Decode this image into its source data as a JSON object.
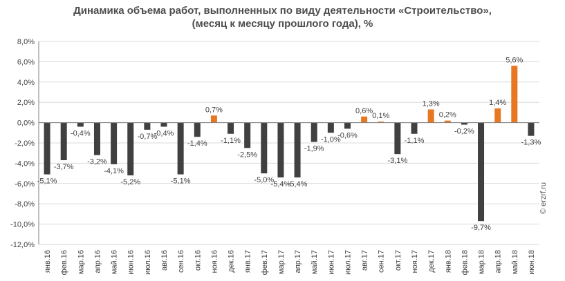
{
  "title_line1": "Динамика объема работ, выполненных по виду деятельности «Строительство»,",
  "title_line2": "(месяц к месяцу прошлого года), %",
  "watermark": "© erzrf.ru",
  "colors": {
    "negative": "#404040",
    "positive": "#e87722",
    "grid": "#d9d9d9",
    "axis": "#7f7f7f",
    "text": "#404040"
  },
  "chart_data": {
    "type": "bar",
    "title": "Динамика объема работ, выполненных по виду деятельности «Строительство», (месяц к месяцу прошлого года), %",
    "categories": [
      "янв.16",
      "фев.16",
      "мар.16",
      "апр.16",
      "май.16",
      "июн.16",
      "июл.16",
      "авг.16",
      "сен.16",
      "окт.16",
      "ноя.16",
      "дек.16",
      "янв.17",
      "фев.17",
      "мар.17",
      "апр.17",
      "май.17",
      "июн.17",
      "июл.17",
      "авг.17",
      "сен.17",
      "окт.17",
      "ноя.17",
      "дек.17",
      "янв.18",
      "фев.18",
      "мар.18",
      "апр.18",
      "май.18",
      "июн.18"
    ],
    "values": [
      -5.1,
      -3.7,
      -0.4,
      -3.2,
      -4.1,
      -5.2,
      -0.7,
      -0.4,
      -5.1,
      -1.4,
      0.7,
      -1.1,
      -2.5,
      -5.0,
      -5.4,
      -5.4,
      -1.9,
      -1.0,
      -0.6,
      0.6,
      0.1,
      -3.1,
      -1.1,
      1.3,
      0.2,
      -0.2,
      -9.7,
      1.4,
      5.6,
      -1.3
    ],
    "value_labels": [
      "-5,1%",
      "-3,7%",
      "-0,4%",
      "-3,2%",
      "-4,1%",
      "-5,2%",
      "-0,7%",
      "-0,4%",
      "-5,1%",
      "-1,4%",
      "0,7%",
      "-1,1%",
      "-2,5%",
      "-5,0%",
      "-5,4%",
      "-5,4%",
      "-1,9%",
      "-1,0%",
      "-0,6%",
      "0,6%",
      "0,1%",
      "-3,1%",
      "-1,1%",
      "1,3%",
      "0,2%",
      "-0,2%",
      "-9,7%",
      "1,4%",
      "5,6%",
      "-1,3%"
    ],
    "yticks": [
      8,
      6,
      4,
      2,
      0,
      -2,
      -4,
      -6,
      -8,
      -10,
      -12
    ],
    "ytick_labels": [
      "8,0%",
      "6,0%",
      "4,0%",
      "2,0%",
      "0,0%",
      "-2,0%",
      "-4,0%",
      "-6,0%",
      "-8,0%",
      "-10,0%",
      "-12,0%"
    ],
    "ylim": [
      -12,
      8
    ],
    "grid": true,
    "legend": "none"
  }
}
